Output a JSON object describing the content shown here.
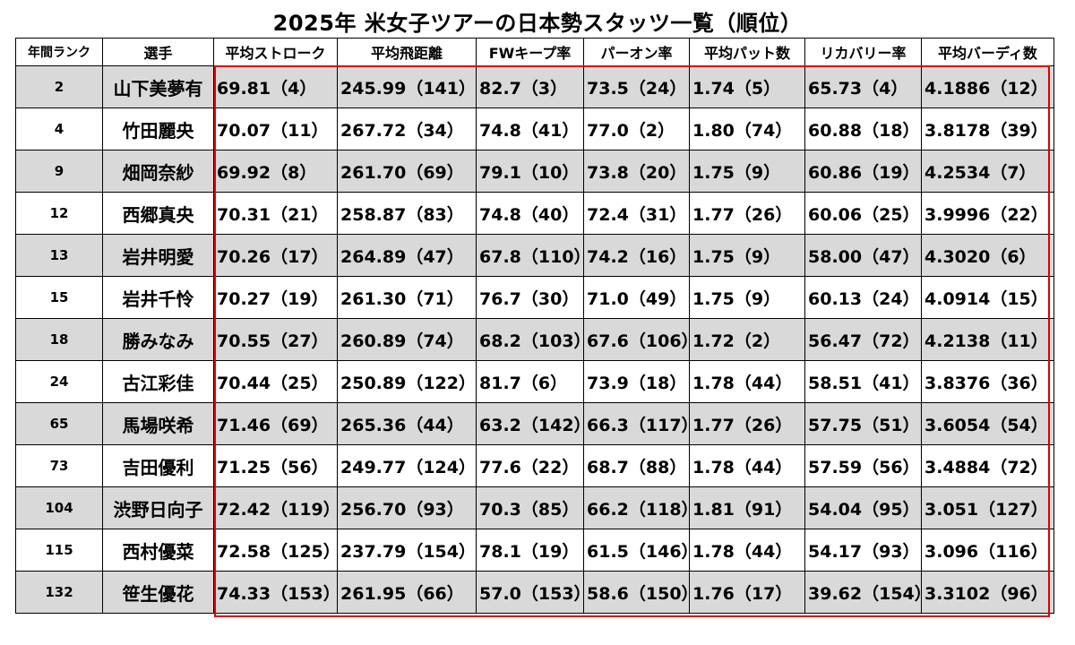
{
  "title": "2025年 米女子ツアーの日本勢スタッツ一覧（順位）",
  "headers": [
    "年間ランク",
    "選手",
    "平均ストローク",
    "平均飛距離",
    "FWキープ率",
    "パーオン率",
    "平均パット数",
    "リカバリー率",
    "平均バーディ数"
  ],
  "rows": [
    [
      "2",
      "山下美夢有",
      "69.81（4）",
      "245.99（141）",
      "82.7（3）",
      "73.5（24）",
      "1.74（5）",
      "65.73（4）",
      "4.1886（12）"
    ],
    [
      "4",
      "竹田麗央",
      "70.07（11）",
      "267.72（34）",
      "74.8（41）",
      "77.0（2）",
      "1.80（74）",
      "60.88（18）",
      "3.8178（39）"
    ],
    [
      "9",
      "畑岡奈紗",
      "69.92（8）",
      "261.70（69）",
      "79.1（10）",
      "73.8（20）",
      "1.75（9）",
      "60.86（19）",
      "4.2534（7）"
    ],
    [
      "12",
      "西郷真央",
      "70.31（21）",
      "258.87（83）",
      "74.8（40）",
      "72.4（31）",
      "1.77（26）",
      "60.06（25）",
      "3.9996（22）"
    ],
    [
      "13",
      "岩井明愛",
      "70.26（17）",
      "264.89（47）",
      "67.8（110）",
      "74.2（16）",
      "1.75（9）",
      "58.00（47）",
      "4.3020（6）"
    ],
    [
      "15",
      "岩井千怜",
      "70.27（19）",
      "261.30（71）",
      "76.7（30）",
      "71.0（49）",
      "1.75（9）",
      "60.13（24）",
      "4.0914（15）"
    ],
    [
      "18",
      "勝みなみ",
      "70.55（27）",
      "260.89（74）",
      "68.2（103）",
      "67.6（106）",
      "1.72（2）",
      "56.47（72）",
      "4.2138（11）"
    ],
    [
      "24",
      "古江彩佳",
      "70.44（25）",
      "250.89（122）",
      "81.7（6）",
      "73.9（18）",
      "1.78（44）",
      "58.51（41）",
      "3.8376（36）"
    ],
    [
      "65",
      "馬場咲希",
      "71.46（69）",
      "265.36（44）",
      "63.2（142）",
      "66.3（117）",
      "1.77（26）",
      "57.75（51）",
      "3.6054（54）"
    ],
    [
      "73",
      "吉田優利",
      "71.25（56）",
      "249.77（124）",
      "77.6（22）",
      "68.7（88）",
      "1.78（44）",
      "57.59（56）",
      "3.4884（72）"
    ],
    [
      "104",
      "渋野日向子",
      "72.42（119）",
      "256.70（93）",
      "70.3（85）",
      "66.2（118）",
      "1.81（91）",
      "54.04（95）",
      "3.051（127）"
    ],
    [
      "115",
      "西村優菜",
      "72.58（125）",
      "237.79（154）",
      "78.1（19）",
      "61.5（146）",
      "1.78（44）",
      "54.17（93）",
      "3.096（116）"
    ],
    [
      "132",
      "笹生優花",
      "74.33（153）",
      "261.95（66）",
      "57.0（153）",
      "58.6（150）",
      "1.76（17）",
      "39.62（154）",
      "3.3102（96）"
    ]
  ],
  "colors": {
    "stripe": "#d9d9d9",
    "highlight_border": "#e00000"
  }
}
